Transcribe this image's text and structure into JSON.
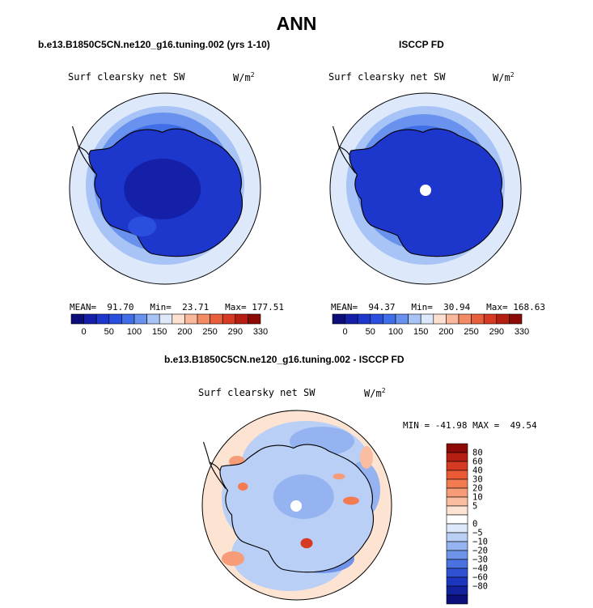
{
  "page_title": "ANN",
  "panels": [
    {
      "title": "b.e13.B1850C5CN.ne120_g16.tuning.002 (yrs 1-10)",
      "variable": "Surf clearsky net SW",
      "units": "W/m",
      "units_exp": "2",
      "stats": {
        "mean_label": "MEAN=",
        "mean": "91.70",
        "min_label": "Min=",
        "min": "23.71",
        "max_label": "Max=",
        "max": "177.51"
      }
    },
    {
      "title": "ISCCP FD",
      "variable": "Surf clearsky net SW",
      "units": "W/m",
      "units_exp": "2",
      "stats": {
        "mean_label": "MEAN=",
        "mean": "94.37",
        "min_label": "Min=",
        "min": "30.94",
        "max_label": "Max=",
        "max": "168.63"
      }
    }
  ],
  "colorbar_top": {
    "colors": [
      "#0b0d78",
      "#1520a8",
      "#1d36cc",
      "#2a4fdf",
      "#3f6ee8",
      "#6892ee",
      "#a8c3f5",
      "#dde9fb",
      "#fde0cf",
      "#f9b89b",
      "#f38c65",
      "#e85f3c",
      "#d63a22",
      "#b51f12",
      "#8b0a06"
    ],
    "labels": [
      "0",
      "50",
      "100",
      "150",
      "200",
      "250",
      "290",
      "330"
    ]
  },
  "diff_panel": {
    "title": "b.e13.B1850C5CN.ne120_g16.tuning.002 - ISCCP FD",
    "variable": "Surf clearsky net SW",
    "units": "W/m",
    "units_exp": "2",
    "stats": {
      "min_label": "MIN =",
      "min": "-41.98",
      "max_label": "MAX =",
      "max": "49.54"
    }
  },
  "colorbar_diff": {
    "colors": [
      "#8b0a06",
      "#b51f12",
      "#d63a22",
      "#ea5b35",
      "#f37b52",
      "#f79c78",
      "#fbbd9f",
      "#fde3d2",
      "#ffffff",
      "#dde9fb",
      "#b9cff6",
      "#94b3f0",
      "#6e93e9",
      "#4b72e0",
      "#2f52d2",
      "#1d36bf",
      "#12229e",
      "#0b0d78"
    ],
    "labels": [
      "80",
      "60",
      "40",
      "30",
      "20",
      "10",
      "5",
      "0",
      "−5",
      "−10",
      "−20",
      "−30",
      "−40",
      "−60",
      "−80"
    ]
  }
}
